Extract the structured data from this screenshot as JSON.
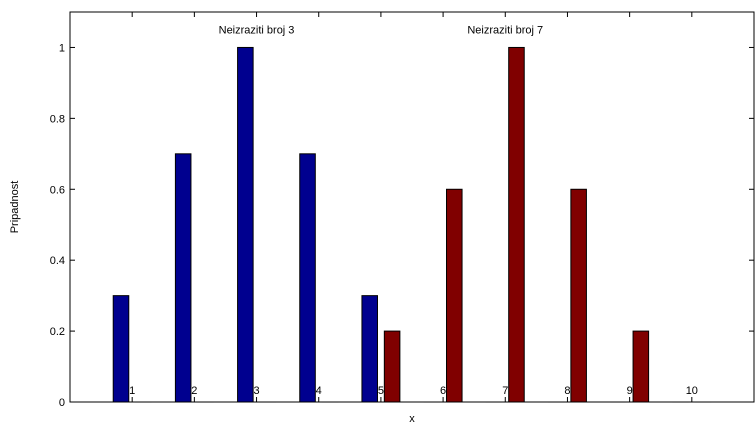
{
  "chart_data": {
    "type": "bar",
    "categories": [
      "1",
      "2",
      "3",
      "4",
      "5",
      "6",
      "7",
      "8",
      "9",
      "10"
    ],
    "series": [
      {
        "color": "#00008f",
        "values": [
          0.3,
          0.7,
          1.0,
          0.7,
          0.3,
          0,
          0,
          0,
          0,
          0
        ]
      },
      {
        "color": "#800000",
        "values": [
          0,
          0,
          0,
          0,
          0.2,
          0.6,
          1.0,
          0.6,
          0.2,
          0
        ]
      }
    ],
    "annotations": [
      {
        "text": "Neizraziti broj 3",
        "x": 3,
        "y": 1.05
      },
      {
        "text": "Neizraziti broj 7",
        "x": 7,
        "y": 1.05
      }
    ],
    "xlabel": "x",
    "ylabel": "Pripadnost",
    "ylim": [
      0,
      1.1
    ],
    "xlim": [
      0,
      11
    ],
    "yticks": [
      0,
      0.2,
      0.4,
      0.6,
      0.8,
      1
    ],
    "ytick_labels": [
      "0",
      "0.2",
      "0.4",
      "0.6",
      "0.8",
      "1"
    ],
    "grid": false,
    "legend": "none"
  }
}
